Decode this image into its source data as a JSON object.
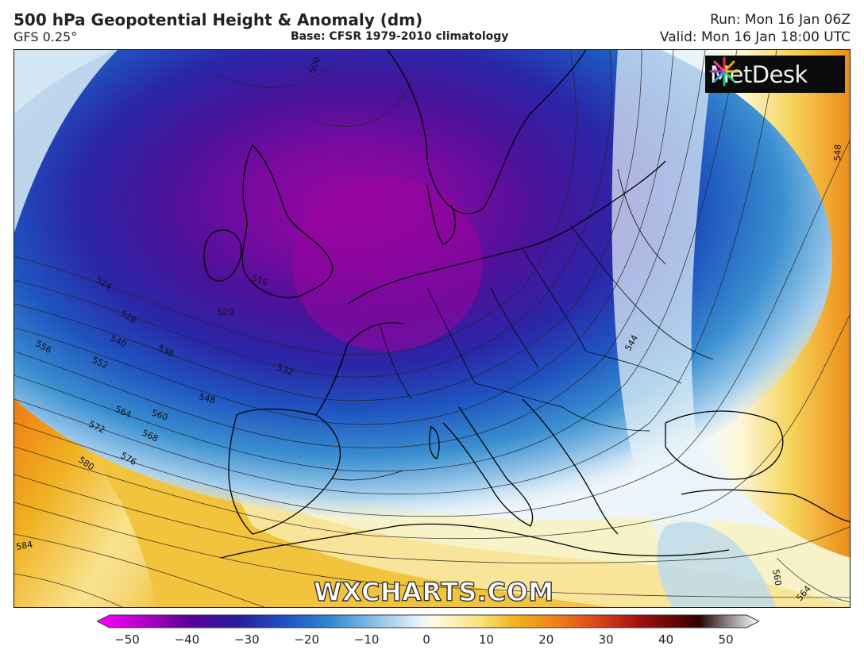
{
  "header": {
    "title": "500 hPa Geopotential Height & Anomaly (dm)",
    "model": "GFS 0.25°",
    "base": "Base: CFSR 1979-2010 climatology",
    "run": "Run: Mon 16 Jan 06Z",
    "valid": "Valid: Mon 16 Jan 18:00 UTC"
  },
  "logo": {
    "text": "MetDesk",
    "icon": "starburst-icon"
  },
  "watermark": "WXCHARTS.COM",
  "contour_labels": [
    "500",
    "516",
    "520",
    "524",
    "528",
    "532",
    "536",
    "540",
    "544",
    "548",
    "552",
    "556",
    "560",
    "564",
    "568",
    "572",
    "576",
    "580",
    "584"
  ],
  "colorbar": {
    "ticks": [
      "−50",
      "−40",
      "−30",
      "−20",
      "−10",
      "0",
      "10",
      "20",
      "30",
      "40",
      "50"
    ],
    "min": -50,
    "max": 50,
    "stops": [
      "#ff00ff",
      "#b400c8",
      "#5a0096",
      "#2a1a9e",
      "#1f4ec2",
      "#2f86d0",
      "#8cc0e6",
      "#eaf4fb",
      "#fffbe0",
      "#f7e27a",
      "#f0b41e",
      "#ee7a1a",
      "#d8401a",
      "#a01010",
      "#5a0404",
      "#2a0202",
      "#ffffff"
    ]
  },
  "colors": {
    "strong_negative": "#8a0aa6",
    "negative": "#2431a8",
    "neutral": "#f2f8fc",
    "positive": "#f0b82a",
    "strong_positive": "#f07a14"
  }
}
